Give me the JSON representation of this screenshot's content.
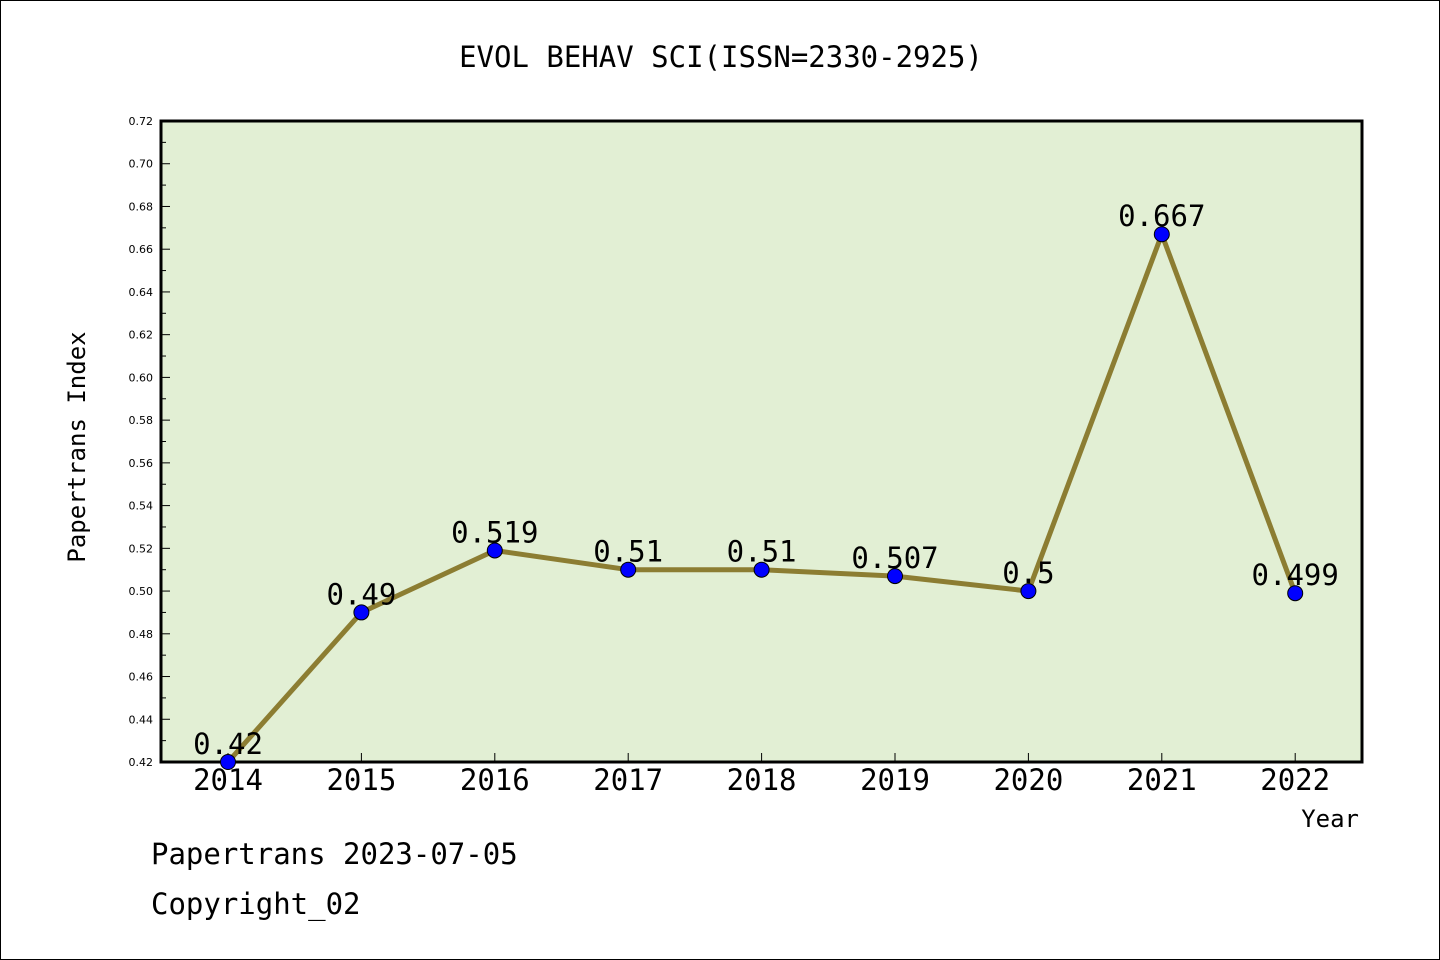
{
  "chart_data": {
    "type": "line",
    "title": "EVOL BEHAV SCI(ISSN=2330-2925)",
    "xlabel": "Year",
    "ylabel": "Papertrans Index",
    "categories": [
      "2014",
      "2015",
      "2016",
      "2017",
      "2018",
      "2019",
      "2020",
      "2021",
      "2022"
    ],
    "series": [
      {
        "values": [
          0.42,
          0.49,
          0.519,
          0.51,
          0.51,
          0.507,
          0.5,
          0.667,
          0.499
        ],
        "labels": [
          "0.42",
          "0.49",
          "0.519",
          "0.51",
          "0.51",
          "0.507",
          "0.5",
          "0.667",
          "0.499"
        ]
      }
    ],
    "ylim": [
      0.42,
      0.72
    ],
    "yticks": [
      "0.42",
      "0.44",
      "0.46",
      "0.48",
      "0.50",
      "0.52",
      "0.54",
      "0.56",
      "0.58",
      "0.60",
      "0.62",
      "0.64",
      "0.66",
      "0.68",
      "0.70",
      "0.72"
    ],
    "grid": false,
    "colors": {
      "plot_background": "#e2efd4",
      "line": "#8c7d32",
      "marker": "#0000ff",
      "axis": "#000000"
    }
  },
  "footer": {
    "date_line": "Papertrans 2023-07-05",
    "copyright_line": "Copyright_02"
  }
}
